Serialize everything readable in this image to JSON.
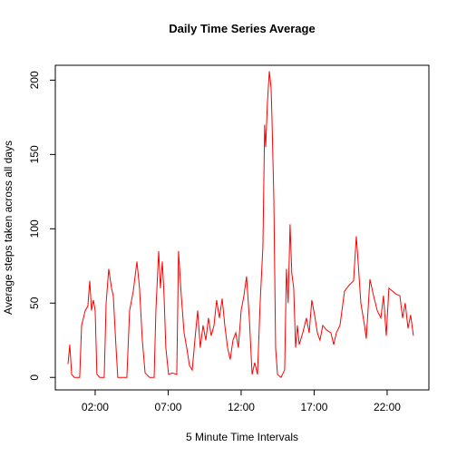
{
  "chart_data": {
    "type": "line",
    "title": "Daily Time Series Average",
    "x_label": "5 Minute Time Intervals",
    "y_label": "Average steps taken across all days",
    "x": [
      0.14,
      0.26,
      0.39,
      0.57,
      0.94,
      1.07,
      1.32,
      1.5,
      1.63,
      1.75,
      1.88,
      2.0,
      2.12,
      2.31,
      2.62,
      2.75,
      2.93,
      3.12,
      3.24,
      3.43,
      3.55,
      4.17,
      4.36,
      4.61,
      4.86,
      5.04,
      5.23,
      5.42,
      5.73,
      6.04,
      6.16,
      6.35,
      6.47,
      6.6,
      6.72,
      6.84,
      7.03,
      7.28,
      7.59,
      7.71,
      7.9,
      8.09,
      8.27,
      8.46,
      8.65,
      8.83,
      9.02,
      9.2,
      9.39,
      9.58,
      9.76,
      9.95,
      10.14,
      10.32,
      10.51,
      10.7,
      10.88,
      11.07,
      11.25,
      11.44,
      11.63,
      11.81,
      12.0,
      12.19,
      12.37,
      12.56,
      12.75,
      12.93,
      13.12,
      13.3,
      13.49,
      13.61,
      13.68,
      13.8,
      13.93,
      14.05,
      14.11,
      14.24,
      14.36,
      14.49,
      14.73,
      14.98,
      15.1,
      15.22,
      15.35,
      15.47,
      15.6,
      15.73,
      15.85,
      15.98,
      16.22,
      16.47,
      16.66,
      16.84,
      17.03,
      17.22,
      17.4,
      17.59,
      17.84,
      18.15,
      18.34,
      18.52,
      18.77,
      19.08,
      19.39,
      19.7,
      19.89,
      20.01,
      20.2,
      20.45,
      20.57,
      20.82,
      21.07,
      21.32,
      21.57,
      21.75,
      21.94,
      22.12,
      22.37,
      22.62,
      22.87,
      23.06,
      23.24,
      23.43,
      23.61,
      23.8
    ],
    "series": [
      {
        "color": "#ff0000",
        "values": [
          9,
          22,
          2,
          0,
          0,
          35,
          45,
          48,
          65,
          45,
          52,
          45,
          2,
          0,
          0,
          50,
          73,
          60,
          55,
          20,
          0,
          0,
          45,
          58,
          78,
          60,
          25,
          3,
          0,
          0,
          45,
          85,
          60,
          78,
          55,
          20,
          2,
          3,
          2,
          85,
          55,
          30,
          20,
          8,
          5,
          25,
          45,
          20,
          35,
          25,
          40,
          28,
          35,
          52,
          40,
          53,
          35,
          20,
          12,
          25,
          30,
          20,
          45,
          55,
          68,
          40,
          2,
          10,
          2,
          50,
          88,
          170,
          155,
          185,
          206,
          195,
          175,
          120,
          20,
          2,
          0,
          5,
          73,
          50,
          103,
          70,
          60,
          20,
          35,
          22,
          30,
          40,
          30,
          52,
          42,
          30,
          25,
          35,
          32,
          30,
          22,
          30,
          35,
          58,
          62,
          65,
          95,
          78,
          50,
          35,
          26,
          66,
          55,
          45,
          40,
          55,
          28,
          60,
          58,
          56,
          55,
          40,
          50,
          33,
          42,
          28
        ]
      }
    ],
    "xlim": [
      -0.73,
      24.86
    ],
    "ylim": [
      -8.4,
      210
    ],
    "xticks": [
      {
        "value": 2,
        "label": "02:00"
      },
      {
        "value": 7,
        "label": "07:00"
      },
      {
        "value": 12,
        "label": "12:00"
      },
      {
        "value": 17,
        "label": "17:00"
      },
      {
        "value": 22,
        "label": "22:00"
      }
    ],
    "yticks": [
      0,
      50,
      100,
      150,
      200
    ]
  }
}
